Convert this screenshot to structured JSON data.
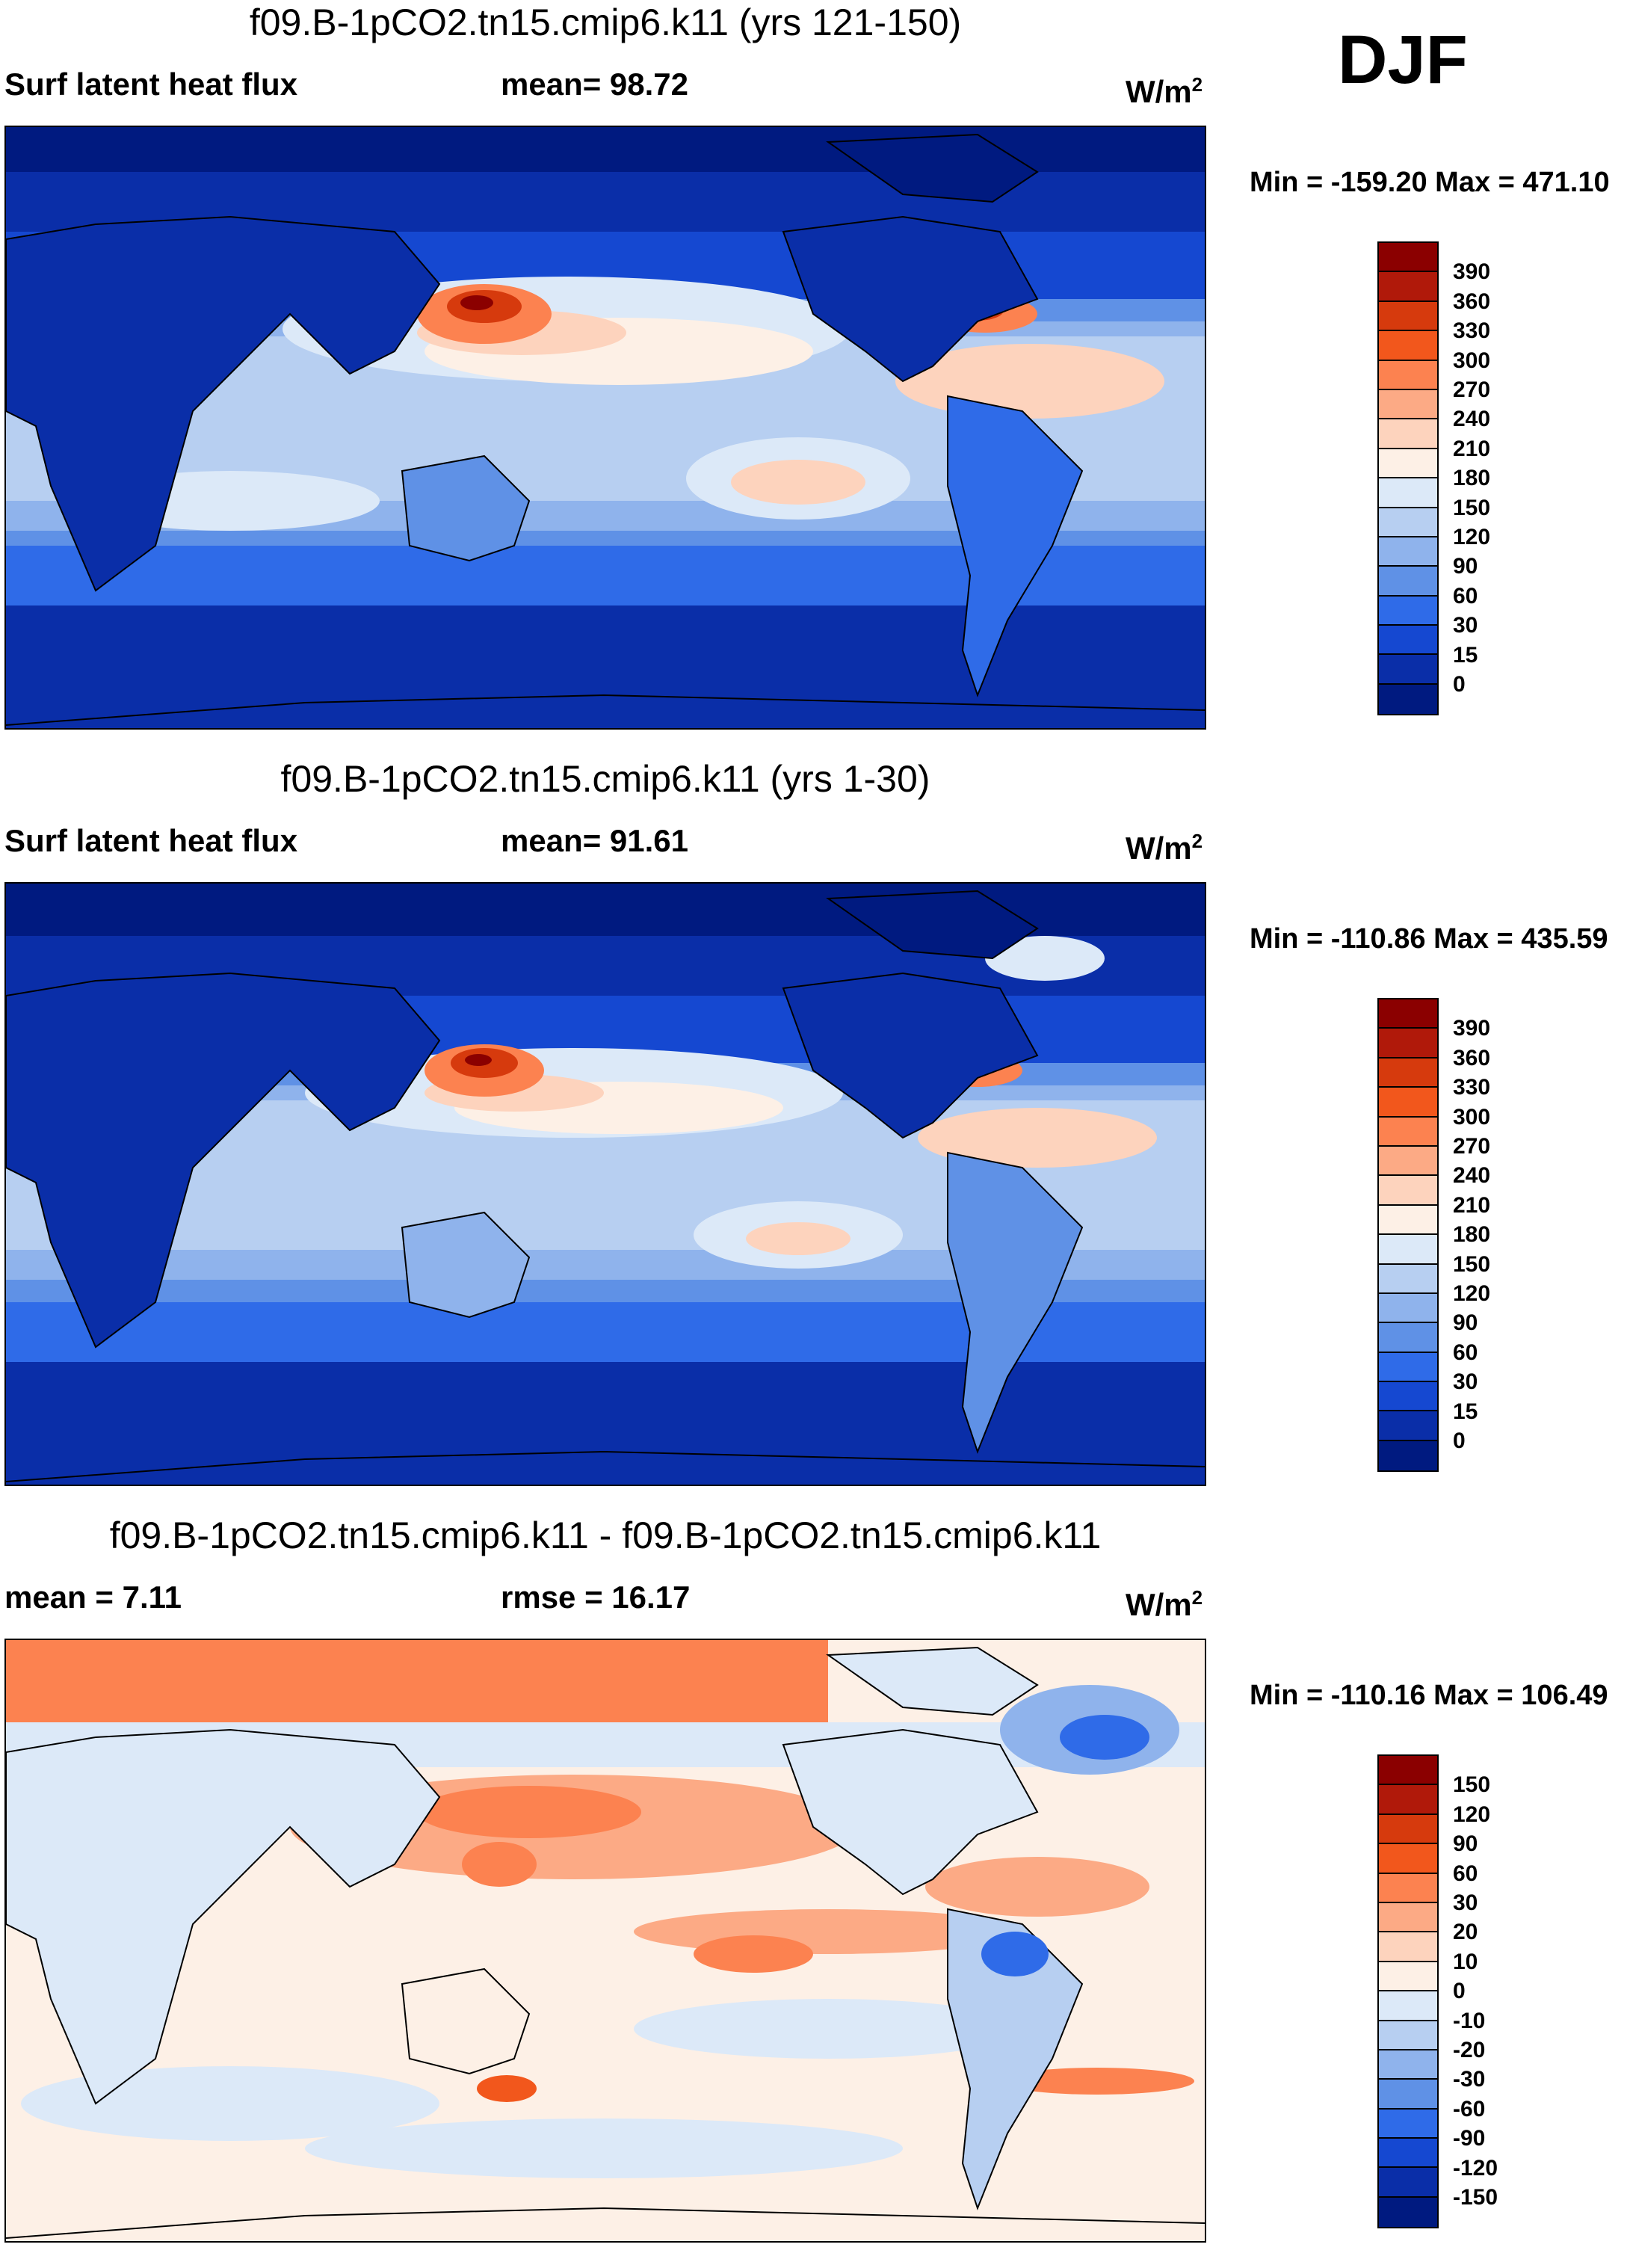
{
  "season": "DJF",
  "panels": [
    {
      "title": "f09.B-1pCO2.tn15.cmip6.k11 (yrs 121-150)",
      "left_label": "Surf latent heat flux",
      "mid_label": "mean=  98.72",
      "units": "W/m",
      "units_sup": "2",
      "minmax": "Min = -159.20 Max = 471.10",
      "colorbar": {
        "labels": [
          "390",
          "360",
          "330",
          "300",
          "270",
          "240",
          "210",
          "180",
          "150",
          "120",
          "90",
          "60",
          "30",
          "15",
          "0"
        ],
        "colors": [
          "#8b0000",
          "#b0190a",
          "#d63a0d",
          "#f2571c",
          "#fc8250",
          "#fcaa85",
          "#fdd3bd",
          "#fdf0e6",
          "#dce9f8",
          "#b7cff1",
          "#8fb3ec",
          "#5f91e6",
          "#2f6be8",
          "#1548d1",
          "#0a2ea8",
          "#001a80"
        ]
      }
    },
    {
      "title": "f09.B-1pCO2.tn15.cmip6.k11 (yrs 1-30)",
      "left_label": "Surf latent heat flux",
      "mid_label": "mean=  91.61",
      "units": "W/m",
      "units_sup": "2",
      "minmax": "Min = -110.86 Max = 435.59",
      "colorbar": {
        "labels": [
          "390",
          "360",
          "330",
          "300",
          "270",
          "240",
          "210",
          "180",
          "150",
          "120",
          "90",
          "60",
          "30",
          "15",
          "0"
        ],
        "colors": [
          "#8b0000",
          "#b0190a",
          "#d63a0d",
          "#f2571c",
          "#fc8250",
          "#fcaa85",
          "#fdd3bd",
          "#fdf0e6",
          "#dce9f8",
          "#b7cff1",
          "#8fb3ec",
          "#5f91e6",
          "#2f6be8",
          "#1548d1",
          "#0a2ea8",
          "#001a80"
        ]
      }
    },
    {
      "title": "f09.B-1pCO2.tn15.cmip6.k11 - f09.B-1pCO2.tn15.cmip6.k11",
      "left_label": "mean =   7.11",
      "mid_label": "rmse =  16.17",
      "units": "W/m",
      "units_sup": "2",
      "minmax": "Min = -110.16 Max = 106.49",
      "colorbar": {
        "labels": [
          "150",
          "120",
          "90",
          "60",
          "30",
          "20",
          "10",
          "0",
          "-10",
          "-20",
          "-30",
          "-60",
          "-90",
          "-120",
          "-150"
        ],
        "colors": [
          "#8b0000",
          "#b0190a",
          "#d63a0d",
          "#f2571c",
          "#fc8250",
          "#fcaa85",
          "#fdd3bd",
          "#fdf0e6",
          "#dce9f8",
          "#b7cff1",
          "#8fb3ec",
          "#5f91e6",
          "#2f6be8",
          "#1548d1",
          "#0a2ea8",
          "#001a80"
        ]
      }
    }
  ]
}
